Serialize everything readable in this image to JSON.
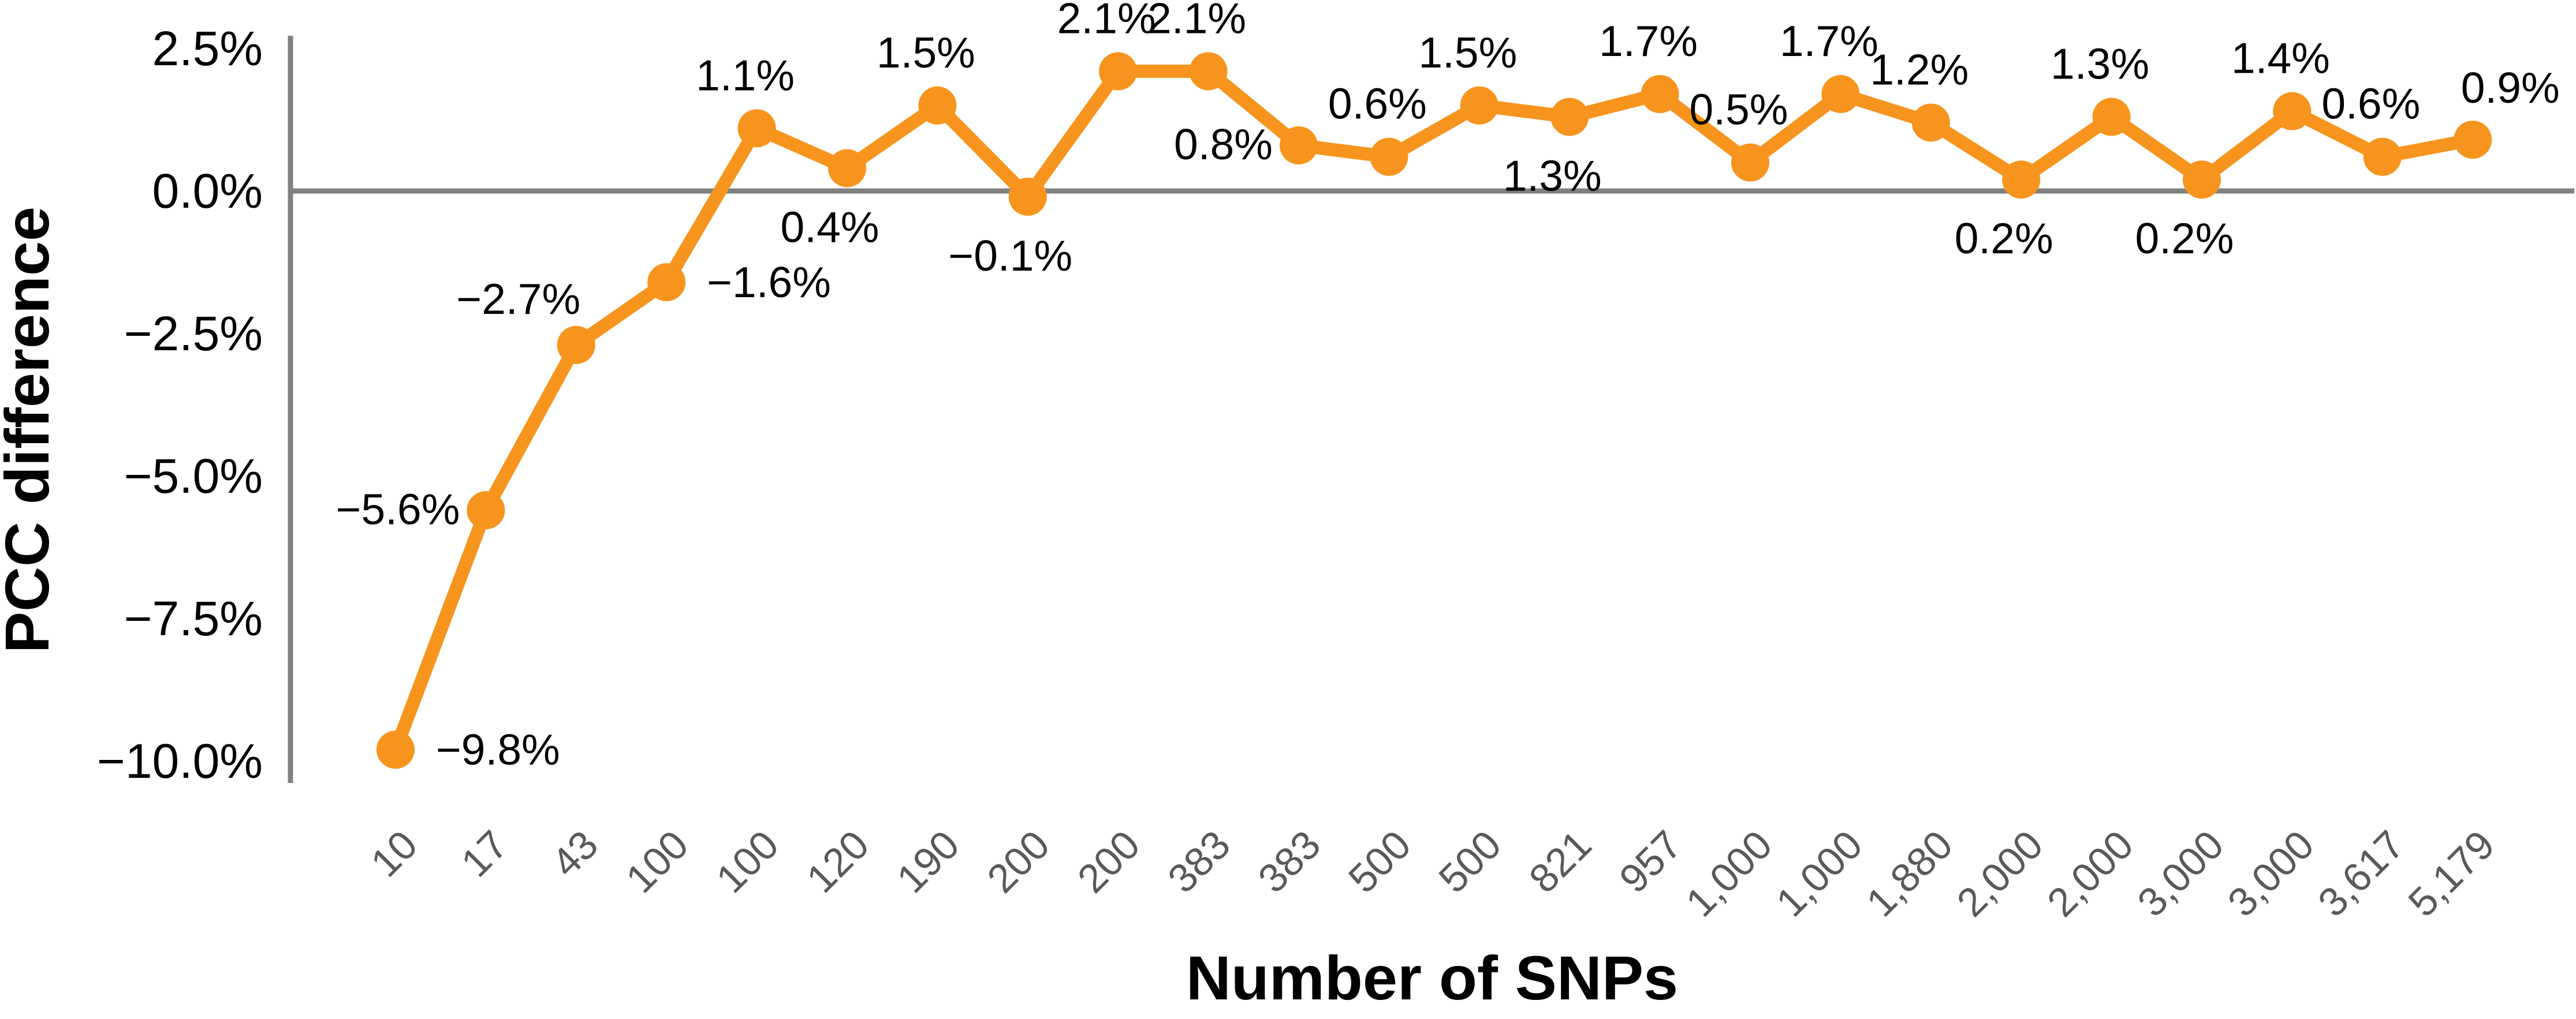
{
  "chart_data": {
    "type": "line",
    "title": "",
    "xlabel": "Number of SNPs",
    "ylabel": "PCC difference",
    "categories": [
      "10",
      "17",
      "43",
      "100",
      "100",
      "120",
      "190",
      "200",
      "200",
      "383",
      "383",
      "500",
      "500",
      "821",
      "957",
      "1,000",
      "1,000",
      "1,880",
      "2,000",
      "2,000",
      "3,000",
      "3,000",
      "3,617",
      "5,179"
    ],
    "series": [
      {
        "name": "PCC difference",
        "values": [
          -9.8,
          -5.6,
          -2.7,
          -1.6,
          1.1,
          0.4,
          1.5,
          -0.1,
          2.1,
          2.1,
          0.8,
          0.6,
          1.5,
          1.3,
          1.7,
          0.5,
          1.7,
          1.2,
          0.2,
          1.3,
          0.2,
          1.4,
          0.6,
          0.9
        ],
        "point_labels": [
          "−9.8%",
          "−5.6%",
          "−2.7%",
          "−1.6%",
          "1.1%",
          "0.4%",
          "1.5%",
          "−0.1%",
          "2.1%",
          "2.1%",
          "0.8%",
          "0.6%",
          "1.5%",
          "1.3%",
          "1.7%",
          "0.5%",
          "1.7%",
          "1.2%",
          "0.2%",
          "1.3%",
          "0.2%",
          "1.4%",
          "0.6%",
          "0.9%"
        ],
        "label_positions": [
          "right",
          "left",
          "above-left",
          "right",
          "above",
          "below",
          "above",
          "below",
          "above",
          "above",
          "left",
          "above",
          "above",
          "below",
          "above",
          "above",
          "above",
          "above",
          "below",
          "above",
          "below",
          "above",
          "above",
          "above-right"
        ]
      }
    ],
    "y_axis": {
      "range": [
        -10.0,
        2.5
      ],
      "tick_step": 2.5,
      "ticks": [
        {
          "value": 2.5,
          "label": "2.5%"
        },
        {
          "value": 0.0,
          "label": "0.0%"
        },
        {
          "value": -2.5,
          "label": "−2.5%"
        },
        {
          "value": -5.0,
          "label": "−5.0%"
        },
        {
          "value": -7.5,
          "label": "−7.5%"
        },
        {
          "value": -10.0,
          "label": "−10.0%"
        }
      ]
    },
    "x_axis": {
      "tick_rotation_deg": -45
    },
    "legend": "none",
    "grid": "zero-baseline-only",
    "marker": "circle",
    "colors": {
      "series": "#F7941D",
      "axis_line": "#808080",
      "zero_line": "#808080",
      "y_tick_text": "#000000",
      "x_tick_text": "#595959",
      "data_label_text": "#000000",
      "background": "#FFFFFF"
    }
  }
}
